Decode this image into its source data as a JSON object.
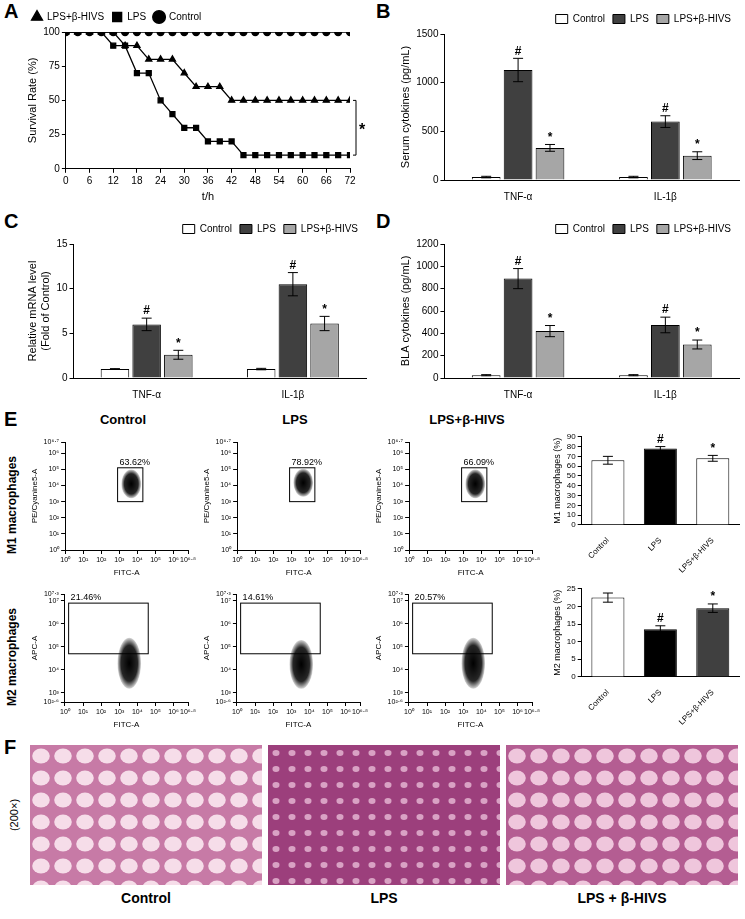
{
  "chart_data": [
    {
      "panel": "A",
      "type": "line",
      "x_label": "t/h",
      "y_label": "Survival Rate (%)",
      "x": [
        0,
        3,
        6,
        9,
        12,
        15,
        18,
        21,
        24,
        27,
        30,
        33,
        36,
        39,
        42,
        45,
        48,
        51,
        54,
        57,
        60,
        63,
        66,
        69,
        72
      ],
      "series": [
        {
          "name": "LPS+β-HIVS",
          "color": "#000000",
          "marker": "triangle",
          "line_style": "solid",
          "values": [
            100,
            100,
            100,
            100,
            100,
            90,
            90,
            80,
            80,
            80,
            70,
            60,
            60,
            60,
            50,
            50,
            50,
            50,
            50,
            50,
            50,
            50,
            50,
            50,
            50
          ]
        },
        {
          "name": "LPS",
          "color": "#000000",
          "marker": "square",
          "line_style": "solid",
          "values": [
            100,
            100,
            100,
            100,
            90,
            90,
            70,
            70,
            50,
            40,
            30,
            30,
            20,
            20,
            20,
            10,
            10,
            10,
            10,
            10,
            10,
            10,
            10,
            10,
            10
          ]
        },
        {
          "name": "Control",
          "color": "#000000",
          "marker": "circle",
          "line_style": "solid",
          "values": [
            100,
            100,
            100,
            100,
            100,
            100,
            100,
            100,
            100,
            100,
            100,
            100,
            100,
            100,
            100,
            100,
            100,
            100,
            100,
            100,
            100,
            100,
            100,
            100,
            100
          ]
        }
      ],
      "xlim": [
        0,
        72
      ],
      "xticks": [
        0,
        6,
        12,
        18,
        24,
        30,
        36,
        42,
        48,
        54,
        60,
        66,
        72
      ],
      "ylim": [
        0,
        100
      ],
      "yticks": [
        0,
        25,
        50,
        75,
        100
      ],
      "annotation": "*",
      "legend": "upper left",
      "grid": false
    },
    {
      "panel": "B",
      "type": "bar",
      "categories": [
        "TNF-α",
        "IL-1β"
      ],
      "y_label": "Serum cytokines (pg/mL)",
      "series": [
        {
          "name": "Control",
          "color": "#ffffff",
          "values": [
            30,
            30
          ],
          "errors": [
            8,
            8
          ]
        },
        {
          "name": "LPS",
          "color": "#404040",
          "values": [
            1130,
            600
          ],
          "errors": [
            120,
            60
          ],
          "marks": [
            "#",
            "#"
          ]
        },
        {
          "name": "LPS+β-HIVS",
          "color": "#a6a6a6",
          "values": [
            330,
            250
          ],
          "errors": [
            35,
            40
          ],
          "marks": [
            "*",
            "*"
          ]
        }
      ],
      "ylim": [
        0,
        1500
      ],
      "yticks": [
        0,
        500,
        1000,
        1500
      ],
      "legend": "upper right",
      "grid": false
    },
    {
      "panel": "C",
      "type": "bar",
      "categories": [
        "TNF-α",
        "IL-1β"
      ],
      "y_label": [
        "Relative mRNA level",
        "(Fold of Control)"
      ],
      "series": [
        {
          "name": "Control",
          "color": "#ffffff",
          "values": [
            1,
            1
          ],
          "errors": [
            0.05,
            0.08
          ]
        },
        {
          "name": "LPS",
          "color": "#404040",
          "values": [
            6,
            10.5
          ],
          "errors": [
            0.7,
            1.3
          ],
          "marks": [
            "#",
            "#"
          ]
        },
        {
          "name": "LPS+β-HIVS",
          "color": "#a6a6a6",
          "values": [
            2.6,
            6.1
          ],
          "errors": [
            0.5,
            0.8
          ],
          "marks": [
            "*",
            "*"
          ]
        }
      ],
      "ylim": [
        0,
        15
      ],
      "yticks": [
        0,
        5,
        10,
        15
      ],
      "legend": "upper right",
      "grid": false
    },
    {
      "panel": "D",
      "type": "bar",
      "categories": [
        "TNF-α",
        "IL-1β"
      ],
      "y_label": "BLA cytokines (pg/mL)",
      "series": [
        {
          "name": "Control",
          "color": "#ffffff",
          "values": [
            25,
            25
          ],
          "errors": [
            5,
            5
          ]
        },
        {
          "name": "LPS",
          "color": "#404040",
          "values": [
            890,
            475
          ],
          "errors": [
            90,
            70
          ],
          "marks": [
            "#",
            "#"
          ]
        },
        {
          "name": "LPS+β-HIVS",
          "color": "#a6a6a6",
          "values": [
            420,
            300
          ],
          "errors": [
            50,
            40
          ],
          "marks": [
            "*",
            "*"
          ]
        }
      ],
      "ylim": [
        0,
        1200
      ],
      "yticks": [
        0,
        200,
        400,
        600,
        800,
        1000,
        1200
      ],
      "legend": "upper right",
      "grid": false
    },
    {
      "type": "bar",
      "categories": [
        "Control",
        "LPS",
        "LPS+β-HIVS"
      ],
      "y_label": "M1 macrophages (%)",
      "values": [
        66,
        78,
        68
      ],
      "errors": [
        4,
        2,
        3
      ],
      "marks": [
        null,
        "#",
        "*"
      ],
      "colors": [
        "#ffffff",
        "#000000",
        "#ffffff"
      ],
      "ylim": [
        0,
        90
      ],
      "yticks": [
        0,
        10,
        20,
        30,
        40,
        50,
        60,
        70,
        80,
        90
      ],
      "grid": false
    },
    {
      "type": "bar",
      "categories": [
        "Control",
        "LPS",
        "LPS+β-HIVS"
      ],
      "y_label": "M2 macrophages (%)",
      "values": [
        22.5,
        13.5,
        19.5
      ],
      "errors": [
        1.3,
        1,
        1.2
      ],
      "marks": [
        null,
        "#",
        "*"
      ],
      "colors": [
        "#ffffff",
        "#000000",
        "#404040"
      ],
      "ylim": [
        0,
        25
      ],
      "yticks": [
        0,
        5,
        10,
        15,
        20,
        25
      ],
      "grid": false
    }
  ],
  "flow_cytometry": {
    "panel": "E",
    "columns": [
      "Control",
      "LPS",
      "LPS+β-HIVS"
    ],
    "rows": [
      {
        "title": "M1 macrophages",
        "x_label": "FITC-A",
        "y_label": "PE/Cyanine5-A",
        "log": true,
        "xlim": [
          1,
          6309573
        ],
        "xticks": [
          {
            "value": 1,
            "label": "10⁰"
          },
          {
            "value": 10,
            "label": "10¹"
          },
          {
            "value": 100,
            "label": "10²"
          },
          {
            "value": 1000,
            "label": "10³"
          },
          {
            "value": 10000,
            "label": "10⁴"
          },
          {
            "value": 100000,
            "label": "10⁵"
          },
          {
            "value": 1000000,
            "label": "10⁶"
          },
          {
            "value": 6309573,
            "label": "10⁶·⁸"
          }
        ],
        "ylim": [
          1,
          5011872
        ],
        "yticks": [
          {
            "value": 1,
            "label": "10⁰"
          },
          {
            "value": 10,
            "label": "10¹"
          },
          {
            "value": 100,
            "label": "10²"
          },
          {
            "value": 1000,
            "label": "10³"
          },
          {
            "value": 10000,
            "label": "10⁴"
          },
          {
            "value": 100000,
            "label": "10⁵"
          },
          {
            "value": 1000000,
            "label": "10⁶"
          },
          {
            "value": 5011872,
            "label": "10⁶·⁷"
          }
        ],
        "plots": [
          {
            "gate": {
              "x": [
                800,
                20000
              ],
              "y": [
                1000,
                126000
              ],
              "percent": 63.62,
              "label": "63.62%"
            },
            "population": {
              "x": [
                1300,
                16000
              ],
              "y": [
                1600,
                100000
              ]
            }
          },
          {
            "gate": {
              "x": [
                800,
                20000
              ],
              "y": [
                1000,
                126000
              ],
              "percent": 78.92,
              "label": "78.92%"
            },
            "population": {
              "x": [
                1300,
                16000
              ],
              "y": [
                2000,
                110000
              ]
            }
          },
          {
            "gate": {
              "x": [
                800,
                20000
              ],
              "y": [
                1000,
                126000
              ],
              "percent": 66.09,
              "label": "66.09%"
            },
            "population": {
              "x": [
                1300,
                16000
              ],
              "y": [
                1600,
                100000
              ]
            }
          }
        ]
      },
      {
        "title": "M2 macrophages",
        "x_label": "FITC-A",
        "y_label": "APC-A",
        "log": true,
        "xlim": [
          1,
          6309573
        ],
        "xticks": [
          {
            "value": 1,
            "label": "10⁰"
          },
          {
            "value": 10,
            "label": "10¹"
          },
          {
            "value": 100,
            "label": "10²"
          },
          {
            "value": 1000,
            "label": "10³"
          },
          {
            "value": 10000,
            "label": "10⁴"
          },
          {
            "value": 100000,
            "label": "10⁵"
          },
          {
            "value": 1000000,
            "label": "10⁶"
          },
          {
            "value": 6309573,
            "label": "10⁶·⁸"
          }
        ],
        "ylim": [
          398.1,
          19952623
        ],
        "yticks": [
          {
            "value": 398.1,
            "label": "10²·⁶"
          },
          {
            "value": 1000,
            "label": "10³"
          },
          {
            "value": 10000,
            "label": "10⁴"
          },
          {
            "value": 100000,
            "label": "10⁵"
          },
          {
            "value": 1000000,
            "label": "10⁶"
          },
          {
            "value": 10000000,
            "label": "10⁷"
          },
          {
            "value": 19952623,
            "label": "10⁷·³"
          }
        ],
        "plots": [
          {
            "gate": {
              "x": [
                1.6,
                40000
              ],
              "y": [
                50000,
                8000000
              ],
              "percent": 21.46,
              "label": "21.46%"
            },
            "population": {
              "x": [
                800,
                16000
              ],
              "y": [
                1500,
                250000
              ]
            }
          },
          {
            "gate": {
              "x": [
                1.6,
                40000
              ],
              "y": [
                50000,
                8000000
              ],
              "percent": 14.61,
              "label": "14.61%"
            },
            "population": {
              "x": [
                800,
                16000
              ],
              "y": [
                1500,
                200000
              ]
            }
          },
          {
            "gate": {
              "x": [
                1.6,
                40000
              ],
              "y": [
                50000,
                8000000
              ],
              "percent": 20.57,
              "label": "20.57%"
            },
            "population": {
              "x": [
                800,
                16000
              ],
              "y": [
                1500,
                250000
              ]
            }
          }
        ]
      }
    ]
  },
  "histology": {
    "panel": "F",
    "magnification": "(200×)",
    "images": [
      "Control",
      "LPS",
      "LPS + β-HIVS"
    ]
  }
}
